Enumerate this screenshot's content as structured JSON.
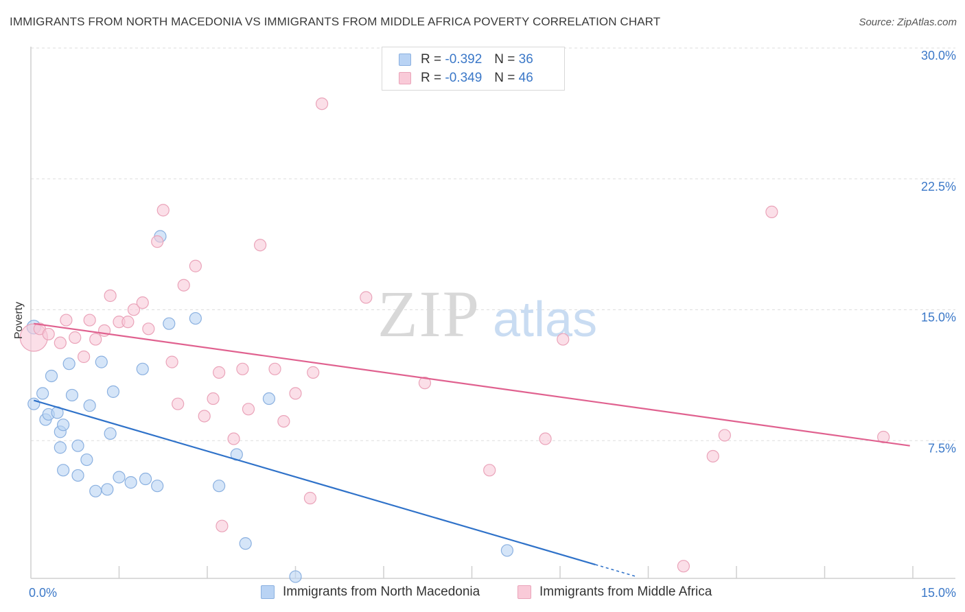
{
  "title": "IMMIGRANTS FROM NORTH MACEDONIA VS IMMIGRANTS FROM MIDDLE AFRICA POVERTY CORRELATION CHART",
  "source": "Source: ZipAtlas.com",
  "legend": {
    "r_label": "R =",
    "n_label": "N =",
    "blue": {
      "r": "-0.392",
      "n": "36"
    },
    "pink": {
      "r": "-0.349",
      "n": "46"
    }
  },
  "watermark": {
    "zip": "ZIP",
    "atlas": "atlas"
  },
  "colors": {
    "blue_fill": "#b9d3f4",
    "blue_stroke": "#8ab0e0",
    "blue_line": "#2f72c9",
    "pink_fill": "#f9cad8",
    "pink_stroke": "#eaa3b9",
    "pink_line": "#e0618f",
    "grid": "#dddddd",
    "axis_label": "#3b78c8"
  },
  "chart_data": {
    "type": "scatter",
    "ylabel": "Poverty",
    "xlim": [
      0,
      15
    ],
    "ylim": [
      0,
      30
    ],
    "x_tick_labels": [
      {
        "value": 0,
        "label": "0.0%"
      },
      {
        "value": 15,
        "label": "15.0%"
      }
    ],
    "y_tick_labels": [
      {
        "value": 7.5,
        "label": "7.5%"
      },
      {
        "value": 15,
        "label": "15.0%"
      },
      {
        "value": 22.5,
        "label": "22.5%"
      },
      {
        "value": 30,
        "label": "30.0%"
      }
    ],
    "series": [
      {
        "name": "Immigrants from North Macedonia",
        "color": "blue",
        "points": [
          [
            0.05,
            14.4
          ],
          [
            0.05,
            10.0
          ],
          [
            0.2,
            10.6
          ],
          [
            0.35,
            11.6
          ],
          [
            0.25,
            9.1
          ],
          [
            0.3,
            9.4
          ],
          [
            0.45,
            9.5
          ],
          [
            0.5,
            8.4
          ],
          [
            0.65,
            12.3
          ],
          [
            0.7,
            10.5
          ],
          [
            0.55,
            8.8
          ],
          [
            0.5,
            7.5
          ],
          [
            0.55,
            6.2
          ],
          [
            0.8,
            7.6
          ],
          [
            0.8,
            5.9
          ],
          [
            0.95,
            6.8
          ],
          [
            1.0,
            9.9
          ],
          [
            1.1,
            5.0
          ],
          [
            1.2,
            12.4
          ],
          [
            1.3,
            5.1
          ],
          [
            1.35,
            8.3
          ],
          [
            1.4,
            10.7
          ],
          [
            1.5,
            5.8
          ],
          [
            1.7,
            5.5
          ],
          [
            1.9,
            12.0
          ],
          [
            1.95,
            5.7
          ],
          [
            2.15,
            5.3
          ],
          [
            2.2,
            19.6
          ],
          [
            2.35,
            14.6
          ],
          [
            2.8,
            14.9
          ],
          [
            3.2,
            5.3
          ],
          [
            3.5,
            7.1
          ],
          [
            3.65,
            2.0
          ],
          [
            4.05,
            10.3
          ],
          [
            4.5,
            0.1
          ],
          [
            8.1,
            1.6
          ]
        ]
      },
      {
        "name": "Immigrants from Middle Africa",
        "color": "pink",
        "points": [
          [
            0.05,
            13.8
          ],
          [
            0.15,
            14.3
          ],
          [
            0.3,
            14.0
          ],
          [
            0.5,
            13.5
          ],
          [
            0.6,
            14.8
          ],
          [
            0.75,
            13.8
          ],
          [
            0.9,
            12.7
          ],
          [
            1.0,
            14.8
          ],
          [
            1.1,
            13.7
          ],
          [
            1.25,
            14.2
          ],
          [
            1.35,
            16.2
          ],
          [
            1.5,
            14.7
          ],
          [
            1.65,
            14.7
          ],
          [
            1.75,
            15.4
          ],
          [
            1.9,
            15.8
          ],
          [
            2.0,
            14.3
          ],
          [
            2.15,
            19.3
          ],
          [
            2.25,
            21.1
          ],
          [
            2.4,
            12.4
          ],
          [
            2.5,
            10.0
          ],
          [
            2.6,
            16.8
          ],
          [
            2.8,
            17.9
          ],
          [
            2.95,
            9.3
          ],
          [
            3.1,
            10.3
          ],
          [
            3.2,
            11.8
          ],
          [
            3.25,
            3.0
          ],
          [
            3.45,
            8.0
          ],
          [
            3.6,
            12.0
          ],
          [
            3.7,
            9.7
          ],
          [
            3.9,
            19.1
          ],
          [
            4.15,
            12.0
          ],
          [
            4.3,
            9.0
          ],
          [
            4.5,
            10.6
          ],
          [
            4.75,
            4.6
          ],
          [
            4.8,
            11.8
          ],
          [
            4.95,
            27.2
          ],
          [
            5.7,
            16.1
          ],
          [
            6.7,
            11.2
          ],
          [
            7.8,
            6.2
          ],
          [
            8.75,
            8.0
          ],
          [
            9.05,
            13.7
          ],
          [
            11.1,
            0.7
          ],
          [
            11.6,
            7.0
          ],
          [
            11.8,
            8.2
          ],
          [
            12.6,
            21.0
          ],
          [
            14.5,
            8.1
          ]
        ]
      }
    ],
    "trend_lines": [
      {
        "series": "blue",
        "x": [
          0.05,
          10.3
        ],
        "y": [
          10.2,
          0.1
        ],
        "solid_until_x": 9.6
      },
      {
        "series": "pink",
        "x": [
          0.05,
          14.95
        ],
        "y": [
          14.6,
          7.6
        ]
      }
    ],
    "grid": true
  },
  "bottom_legend": [
    {
      "label": "Immigrants from North Macedonia",
      "color": "blue"
    },
    {
      "label": "Immigrants from Middle Africa",
      "color": "pink"
    }
  ]
}
